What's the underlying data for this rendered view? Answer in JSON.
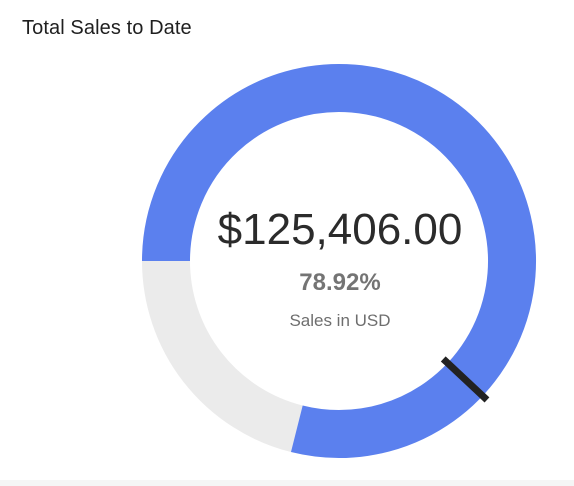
{
  "widget": {
    "title": "Total Sales to Date",
    "value_label": "$125,406.00",
    "percent_label": "78.92%",
    "caption": "Sales in USD"
  },
  "gauge": {
    "progress_fraction": 0.7892,
    "target_fraction": 0.62,
    "colors": {
      "fill": "#5b80ee",
      "track": "#ebebeb",
      "marker": "#222222"
    }
  }
}
